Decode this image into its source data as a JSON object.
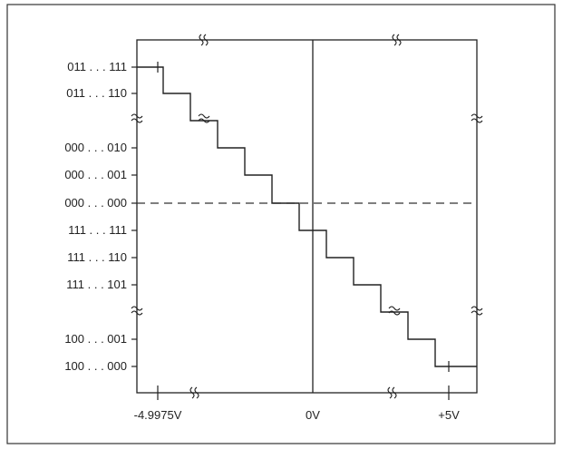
{
  "figure": {
    "y_codes": [
      "011 . . . 111",
      "011 . . . 110",
      "000 . . . 010",
      "000 . . . 001",
      "000 . . . 000",
      "111 . . . 111",
      "111 . . . 110",
      "111 . . . 101",
      "100 . . . 001",
      "100 . . . 000"
    ],
    "x_labels": [
      "-4.9975V",
      "0V",
      "+5V"
    ]
  }
}
